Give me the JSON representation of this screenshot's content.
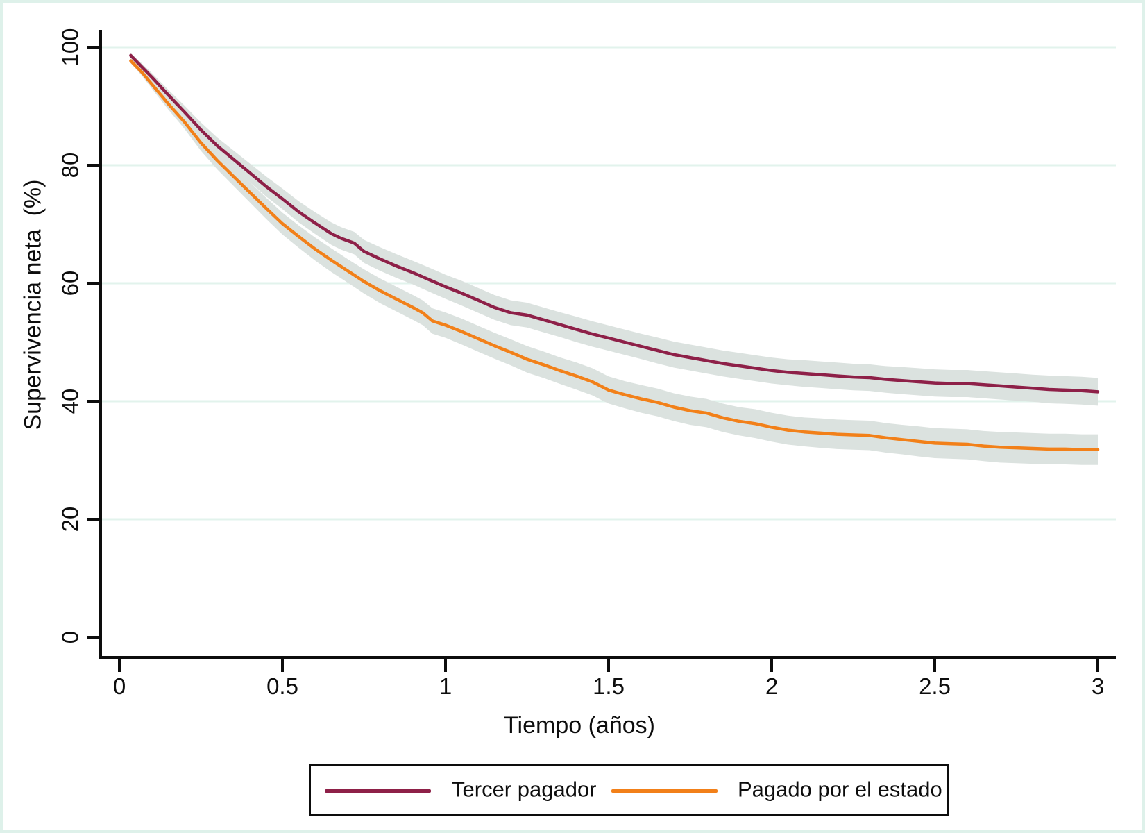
{
  "figure": {
    "background_color": "#ffffff",
    "frame_color": "#def1ea",
    "text_color": "#0d0d0d",
    "gridline_color": "#e2f3ec",
    "axis_color": "#0d0d0d",
    "ci_band_color": "#dbe2df"
  },
  "chart_data": {
    "type": "line",
    "title": "",
    "xlabel": "Tiempo (años)",
    "ylabel": "Supervivencia neta  (%)",
    "xlim": [
      0,
      3
    ],
    "ylim": [
      0,
      100
    ],
    "x_ticks": [
      0,
      0.5,
      1,
      1.5,
      2,
      2.5,
      3
    ],
    "x_tick_labels": [
      "0",
      "0.5",
      "1",
      "1.5",
      "2",
      "2.5",
      "3"
    ],
    "y_ticks": [
      0,
      20,
      40,
      60,
      80,
      100
    ],
    "y_tick_labels": [
      "0",
      "20",
      "40",
      "60",
      "80",
      "100"
    ],
    "grid": "horizontal",
    "gridline_values": [
      20,
      40,
      60,
      80,
      100
    ],
    "legend_position": "bottom",
    "note": "points are [time_years, net_survival_pct, ci_half_width_pct]; shaded band = 95% CI",
    "series": [
      {
        "name": "Tercer pagador",
        "color": "#8e2048",
        "points": [
          [
            0.035,
            98.6,
            0.4
          ],
          [
            0.07,
            96.6,
            0.6
          ],
          [
            0.1,
            94.9,
            0.7
          ],
          [
            0.15,
            91.9,
            0.9
          ],
          [
            0.2,
            89.0,
            1.1
          ],
          [
            0.25,
            86.0,
            1.25
          ],
          [
            0.3,
            83.3,
            1.4
          ],
          [
            0.35,
            81.0,
            1.5
          ],
          [
            0.4,
            78.7,
            1.6
          ],
          [
            0.45,
            76.4,
            1.7
          ],
          [
            0.5,
            74.3,
            1.75
          ],
          [
            0.55,
            72.1,
            1.8
          ],
          [
            0.6,
            70.2,
            1.85
          ],
          [
            0.65,
            68.4,
            1.9
          ],
          [
            0.68,
            67.6,
            1.9
          ],
          [
            0.72,
            66.8,
            1.9
          ],
          [
            0.75,
            65.4,
            1.95
          ],
          [
            0.8,
            64.1,
            2.0
          ],
          [
            0.85,
            62.9,
            2.0
          ],
          [
            0.9,
            61.8,
            2.0
          ],
          [
            0.95,
            60.6,
            2.05
          ],
          [
            1.0,
            59.4,
            2.05
          ],
          [
            1.05,
            58.3,
            2.1
          ],
          [
            1.1,
            57.1,
            2.1
          ],
          [
            1.15,
            55.9,
            2.1
          ],
          [
            1.2,
            55.0,
            2.1
          ],
          [
            1.25,
            54.6,
            2.1
          ],
          [
            1.3,
            53.8,
            2.1
          ],
          [
            1.35,
            53.0,
            2.1
          ],
          [
            1.4,
            52.2,
            2.15
          ],
          [
            1.45,
            51.4,
            2.15
          ],
          [
            1.5,
            50.7,
            2.15
          ],
          [
            1.55,
            50.0,
            2.15
          ],
          [
            1.6,
            49.3,
            2.15
          ],
          [
            1.65,
            48.6,
            2.2
          ],
          [
            1.7,
            47.9,
            2.2
          ],
          [
            1.75,
            47.4,
            2.2
          ],
          [
            1.8,
            46.9,
            2.2
          ],
          [
            1.85,
            46.4,
            2.2
          ],
          [
            1.9,
            46.0,
            2.2
          ],
          [
            1.95,
            45.6,
            2.2
          ],
          [
            2.0,
            45.2,
            2.2
          ],
          [
            2.05,
            44.9,
            2.2
          ],
          [
            2.1,
            44.7,
            2.25
          ],
          [
            2.15,
            44.5,
            2.25
          ],
          [
            2.2,
            44.3,
            2.25
          ],
          [
            2.25,
            44.1,
            2.25
          ],
          [
            2.3,
            44.0,
            2.25
          ],
          [
            2.35,
            43.7,
            2.25
          ],
          [
            2.4,
            43.5,
            2.3
          ],
          [
            2.45,
            43.3,
            2.3
          ],
          [
            2.5,
            43.1,
            2.3
          ],
          [
            2.55,
            43.0,
            2.3
          ],
          [
            2.6,
            43.0,
            2.3
          ],
          [
            2.65,
            42.8,
            2.3
          ],
          [
            2.7,
            42.6,
            2.3
          ],
          [
            2.75,
            42.4,
            2.3
          ],
          [
            2.8,
            42.2,
            2.3
          ],
          [
            2.85,
            42.0,
            2.35
          ],
          [
            2.9,
            41.9,
            2.35
          ],
          [
            2.95,
            41.8,
            2.35
          ],
          [
            3.0,
            41.6,
            2.35
          ]
        ]
      },
      {
        "name": "Pagado por el estado",
        "color": "#f28019",
        "points": [
          [
            0.035,
            97.7,
            0.4
          ],
          [
            0.07,
            95.7,
            0.6
          ],
          [
            0.1,
            93.7,
            0.75
          ],
          [
            0.15,
            90.4,
            0.95
          ],
          [
            0.2,
            87.3,
            1.15
          ],
          [
            0.25,
            83.8,
            1.35
          ],
          [
            0.3,
            80.8,
            1.5
          ],
          [
            0.35,
            78.1,
            1.6
          ],
          [
            0.4,
            75.4,
            1.7
          ],
          [
            0.45,
            72.7,
            1.8
          ],
          [
            0.5,
            70.1,
            1.85
          ],
          [
            0.55,
            67.9,
            1.9
          ],
          [
            0.6,
            65.8,
            1.95
          ],
          [
            0.65,
            63.9,
            2.0
          ],
          [
            0.7,
            62.1,
            2.0
          ],
          [
            0.75,
            60.3,
            2.05
          ],
          [
            0.8,
            58.7,
            2.1
          ],
          [
            0.85,
            57.3,
            2.1
          ],
          [
            0.9,
            55.9,
            2.1
          ],
          [
            0.93,
            55.0,
            2.1
          ],
          [
            0.96,
            53.6,
            2.15
          ],
          [
            1.0,
            52.9,
            2.15
          ],
          [
            1.05,
            51.8,
            2.2
          ],
          [
            1.1,
            50.6,
            2.2
          ],
          [
            1.15,
            49.4,
            2.2
          ],
          [
            1.2,
            48.3,
            2.2
          ],
          [
            1.25,
            47.1,
            2.25
          ],
          [
            1.3,
            46.2,
            2.25
          ],
          [
            1.35,
            45.2,
            2.25
          ],
          [
            1.4,
            44.3,
            2.3
          ],
          [
            1.45,
            43.3,
            2.3
          ],
          [
            1.5,
            41.9,
            2.3
          ],
          [
            1.55,
            41.1,
            2.3
          ],
          [
            1.6,
            40.4,
            2.35
          ],
          [
            1.65,
            39.8,
            2.35
          ],
          [
            1.7,
            39.0,
            2.35
          ],
          [
            1.75,
            38.4,
            2.4
          ],
          [
            1.8,
            38.0,
            2.4
          ],
          [
            1.85,
            37.2,
            2.4
          ],
          [
            1.9,
            36.6,
            2.4
          ],
          [
            1.95,
            36.2,
            2.45
          ],
          [
            2.0,
            35.6,
            2.45
          ],
          [
            2.05,
            35.1,
            2.45
          ],
          [
            2.1,
            34.8,
            2.45
          ],
          [
            2.15,
            34.6,
            2.5
          ],
          [
            2.2,
            34.4,
            2.5
          ],
          [
            2.25,
            34.3,
            2.5
          ],
          [
            2.3,
            34.2,
            2.5
          ],
          [
            2.35,
            33.8,
            2.5
          ],
          [
            2.4,
            33.5,
            2.5
          ],
          [
            2.45,
            33.2,
            2.55
          ],
          [
            2.5,
            32.9,
            2.55
          ],
          [
            2.55,
            32.8,
            2.55
          ],
          [
            2.6,
            32.7,
            2.55
          ],
          [
            2.65,
            32.4,
            2.55
          ],
          [
            2.7,
            32.2,
            2.6
          ],
          [
            2.75,
            32.1,
            2.6
          ],
          [
            2.8,
            32.0,
            2.6
          ],
          [
            2.85,
            31.9,
            2.6
          ],
          [
            2.9,
            31.9,
            2.6
          ],
          [
            2.95,
            31.8,
            2.6
          ],
          [
            3.0,
            31.8,
            2.6
          ]
        ]
      }
    ]
  },
  "legend": {
    "items": [
      {
        "label": "Tercer pagador",
        "color": "#8e2048"
      },
      {
        "label": "Pagado por el estado",
        "color": "#f28019"
      }
    ]
  }
}
